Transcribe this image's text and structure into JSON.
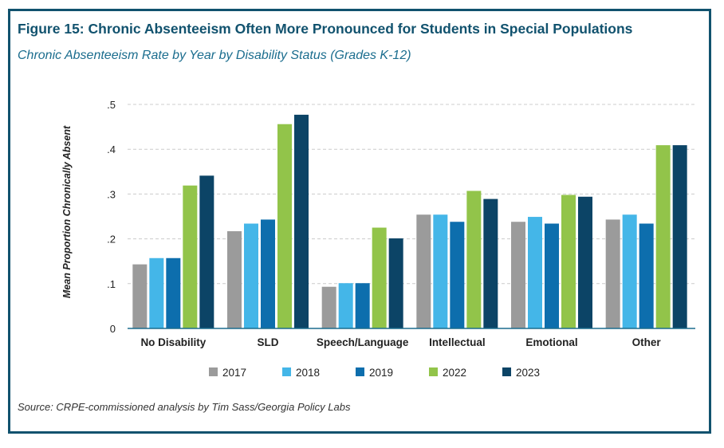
{
  "figure": {
    "title": "Figure 15: Chronic Absenteeism Often More Pronounced for Students in Special Populations",
    "subtitle": "Chronic Absenteeism Rate by Year by Disability Status (Grades K-12)",
    "source": "Source: CRPE-commissioned analysis by Tim Sass/Georgia Policy Labs",
    "border_color": "#11526e"
  },
  "chart_data": {
    "type": "bar",
    "ylabel": "Mean Proportion Chronically Absent",
    "xlabel": "",
    "ylim": [
      0,
      0.5
    ],
    "yticks": [
      0,
      0.1,
      0.2,
      0.3,
      0.4,
      0.5
    ],
    "ytick_labels": [
      "0",
      ".1",
      ".2",
      ".3",
      ".4",
      ".5"
    ],
    "grid": "horizontal dashed",
    "legend_position": "bottom",
    "categories": [
      "No Disability",
      "SLD",
      "Speech/Language",
      "Intellectual",
      "Emotional",
      "Other"
    ],
    "series": [
      {
        "name": "2017",
        "color": "#9b9b9b",
        "values": [
          0.143,
          0.217,
          0.093,
          0.254,
          0.238,
          0.243
        ]
      },
      {
        "name": "2018",
        "color": "#44b6e8",
        "values": [
          0.157,
          0.234,
          0.101,
          0.254,
          0.249,
          0.254
        ]
      },
      {
        "name": "2019",
        "color": "#0d6ead",
        "values": [
          0.157,
          0.243,
          0.101,
          0.238,
          0.234,
          0.234
        ]
      },
      {
        "name": "2022",
        "color": "#92c44a",
        "values": [
          0.319,
          0.456,
          0.225,
          0.307,
          0.298,
          0.409
        ]
      },
      {
        "name": "2023",
        "color": "#0c4466",
        "values": [
          0.341,
          0.477,
          0.201,
          0.289,
          0.294,
          0.409
        ]
      }
    ]
  }
}
